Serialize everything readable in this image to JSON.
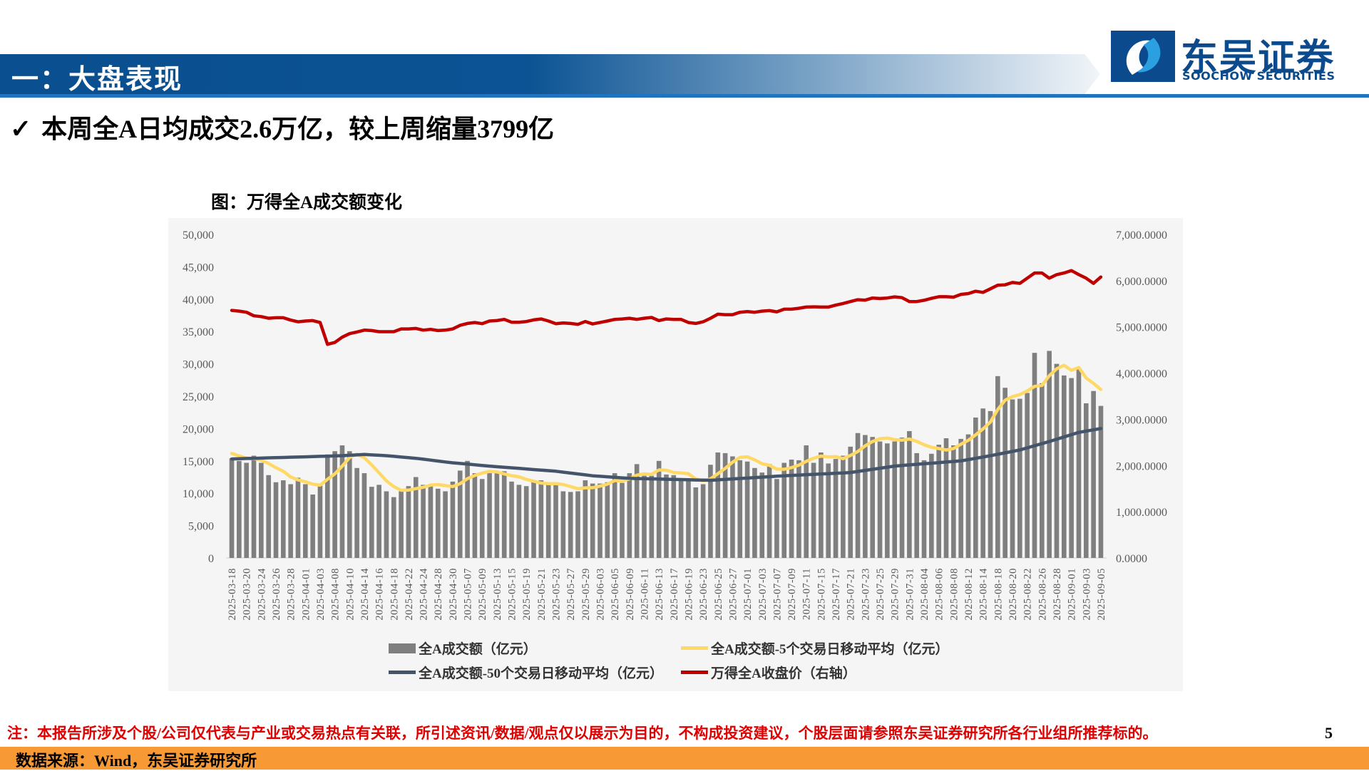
{
  "header": {
    "section_title": "一：大盘表现"
  },
  "logo": {
    "name_cn": "东吴证券",
    "name_en": "SOOCHOW SECURITIES"
  },
  "headline": {
    "check": "✓",
    "text": "本周全A日均成交2.6万亿，较上周缩量3799亿"
  },
  "figure_title": "图：万得全A成交额变化",
  "footnote": "注：本报告所涉及个股/公司仅代表与产业或交易热点有关联，所引述资讯/数据/观点仅以展示为目的，不构成投资建议，个股层面请参照东吴证券研究所各行业组所推荐标的。",
  "page_number": "5",
  "source": "数据来源：Wind，东吴证券研究所",
  "colors": {
    "bar": "#7f7f7f",
    "ma5": "#ffd966",
    "ma50": "#44546a",
    "close": "#c00000",
    "panel": "#f5f5f5"
  },
  "chart_data": {
    "type": "bar+line",
    "title": "图：万得全A成交额变化",
    "left_axis": {
      "min": 0,
      "max": 50000,
      "step": 5000,
      "tick_labels": [
        "0",
        "5,000",
        "10,000",
        "15,000",
        "20,000",
        "25,000",
        "30,000",
        "35,000",
        "40,000",
        "45,000",
        "50,000"
      ]
    },
    "right_axis": {
      "min": 0,
      "max": 7000,
      "step": 1000,
      "tick_labels": [
        "0.0000",
        "1,000.0000",
        "2,000.0000",
        "3,000.0000",
        "4,000.0000",
        "5,000.0000",
        "6,000.0000",
        "7,000.0000"
      ]
    },
    "x_tick_labels": [
      "2025-03-18",
      "2025-03-20",
      "2025-03-24",
      "2025-03-26",
      "2025-03-28",
      "2025-04-01",
      "2025-04-03",
      "2025-04-08",
      "2025-04-10",
      "2025-04-14",
      "2025-04-16",
      "2025-04-18",
      "2025-04-22",
      "2025-04-24",
      "2025-04-28",
      "2025-04-30",
      "2025-05-07",
      "2025-05-09",
      "2025-05-13",
      "2025-05-15",
      "2025-05-19",
      "2025-05-21",
      "2025-05-23",
      "2025-05-27",
      "2025-05-29",
      "2025-06-03",
      "2025-06-05",
      "2025-06-09",
      "2025-06-11",
      "2025-06-13",
      "2025-06-17",
      "2025-06-19",
      "2025-06-23",
      "2025-06-25",
      "2025-06-27",
      "2025-07-01",
      "2025-07-03",
      "2025-07-07",
      "2025-07-09",
      "2025-07-11",
      "2025-07-15",
      "2025-07-17",
      "2025-07-21",
      "2025-07-23",
      "2025-07-25",
      "2025-07-29",
      "2025-07-31",
      "2025-08-04",
      "2025-08-06",
      "2025-08-08",
      "2025-08-12",
      "2025-08-14",
      "2025-08-18",
      "2025-08-20",
      "2025-08-22",
      "2025-08-26",
      "2025-08-28",
      "2025-09-01",
      "2025-09-03",
      "2025-09-05"
    ],
    "x_tick_every": 2,
    "legend_position": "bottom",
    "series": [
      {
        "name": "全A成交额（亿元）",
        "kind": "bar",
        "axis": "left",
        "values": [
          15400,
          15000,
          14700,
          15800,
          14700,
          12800,
          11700,
          12000,
          11400,
          12400,
          11400,
          9800,
          11200,
          16000,
          16500,
          17400,
          16500,
          13900,
          13100,
          11000,
          11300,
          10300,
          9400,
          10300,
          11100,
          12500,
          11300,
          11100,
          10700,
          10300,
          11800,
          13500,
          15000,
          13100,
          12200,
          13100,
          13100,
          13400,
          11800,
          11300,
          11100,
          11700,
          12000,
          11300,
          11400,
          10300,
          10200,
          10300,
          12000,
          11500,
          11500,
          11700,
          13100,
          11600,
          13100,
          14500,
          12700,
          12700,
          15000,
          12900,
          12800,
          12300,
          12100,
          10900,
          11400,
          14400,
          16300,
          16200,
          15700,
          15100,
          14900,
          13900,
          13200,
          14500,
          12200,
          14700,
          15200,
          15100,
          17400,
          14700,
          16300,
          14600,
          15300,
          15800,
          17200,
          19300,
          19000,
          18700,
          18000,
          17700,
          18000,
          18600,
          19600,
          16200,
          15100,
          16100,
          17500,
          18500,
          17400,
          18400,
          19100,
          21700,
          23100,
          22700,
          28100,
          26300,
          24500,
          24600,
          25500,
          31700,
          27000,
          32000,
          30000,
          28200,
          27800,
          29200,
          23900,
          25800,
          23500
        ]
      },
      {
        "name": "全A成交额-5个交易日移动平均（亿元）",
        "kind": "line",
        "axis": "left",
        "derived": "5-day moving average of 全A成交额",
        "seed_prior": [
          16900,
          16500,
          16200,
          15800
        ]
      },
      {
        "name": "全A成交额-50个交易日移动平均（亿元）",
        "kind": "line",
        "axis": "left",
        "values": [
          15300,
          15330,
          15370,
          15400,
          15430,
          15470,
          15500,
          15530,
          15570,
          15600,
          15630,
          15670,
          15700,
          15730,
          15770,
          15800,
          15870,
          15930,
          16000,
          15930,
          15870,
          15800,
          15700,
          15600,
          15500,
          15400,
          15260,
          15120,
          14980,
          14840,
          14700,
          14600,
          14500,
          14400,
          14300,
          14200,
          14100,
          14010,
          13930,
          13840,
          13750,
          13660,
          13580,
          13490,
          13400,
          13260,
          13120,
          12980,
          12840,
          12700,
          12620,
          12540,
          12460,
          12380,
          12300,
          12270,
          12250,
          12220,
          12190,
          12160,
          12140,
          12110,
          12080,
          12050,
          12030,
          12000,
          12070,
          12140,
          12210,
          12280,
          12350,
          12420,
          12490,
          12560,
          12630,
          12700,
          12760,
          12810,
          12870,
          12920,
          12980,
          13030,
          13090,
          13140,
          13200,
          13370,
          13530,
          13700,
          13870,
          14030,
          14200,
          14290,
          14380,
          14470,
          14560,
          14640,
          14730,
          14820,
          14910,
          15000,
          15200,
          15400,
          15600,
          15800,
          16020,
          16250,
          16470,
          16700,
          17020,
          17350,
          17670,
          18000,
          18350,
          18700,
          19050,
          19400,
          19600,
          19800,
          20000
        ]
      },
      {
        "name": "万得全A收盘价（右轴）",
        "kind": "line",
        "axis": "right",
        "values": [
          5357,
          5341,
          5316,
          5239,
          5223,
          5187,
          5198,
          5198,
          5146,
          5110,
          5126,
          5136,
          5095,
          4622,
          4663,
          4776,
          4853,
          4889,
          4930,
          4920,
          4895,
          4895,
          4895,
          4956,
          4956,
          4966,
          4930,
          4946,
          4920,
          4930,
          4956,
          5033,
          5074,
          5095,
          5069,
          5126,
          5136,
          5162,
          5100,
          5100,
          5116,
          5151,
          5172,
          5126,
          5069,
          5085,
          5074,
          5054,
          5116,
          5064,
          5095,
          5126,
          5162,
          5172,
          5187,
          5162,
          5187,
          5203,
          5136,
          5172,
          5162,
          5162,
          5095,
          5074,
          5110,
          5187,
          5274,
          5264,
          5264,
          5316,
          5331,
          5316,
          5341,
          5352,
          5326,
          5382,
          5382,
          5403,
          5429,
          5434,
          5429,
          5429,
          5470,
          5506,
          5547,
          5588,
          5578,
          5624,
          5614,
          5624,
          5650,
          5633,
          5547,
          5547,
          5576,
          5617,
          5653,
          5653,
          5643,
          5704,
          5720,
          5771,
          5746,
          5823,
          5900,
          5910,
          5961,
          5940,
          6053,
          6166,
          6166,
          6053,
          6130,
          6166,
          6218,
          6130,
          6053,
          5940,
          6079
        ]
      }
    ]
  }
}
